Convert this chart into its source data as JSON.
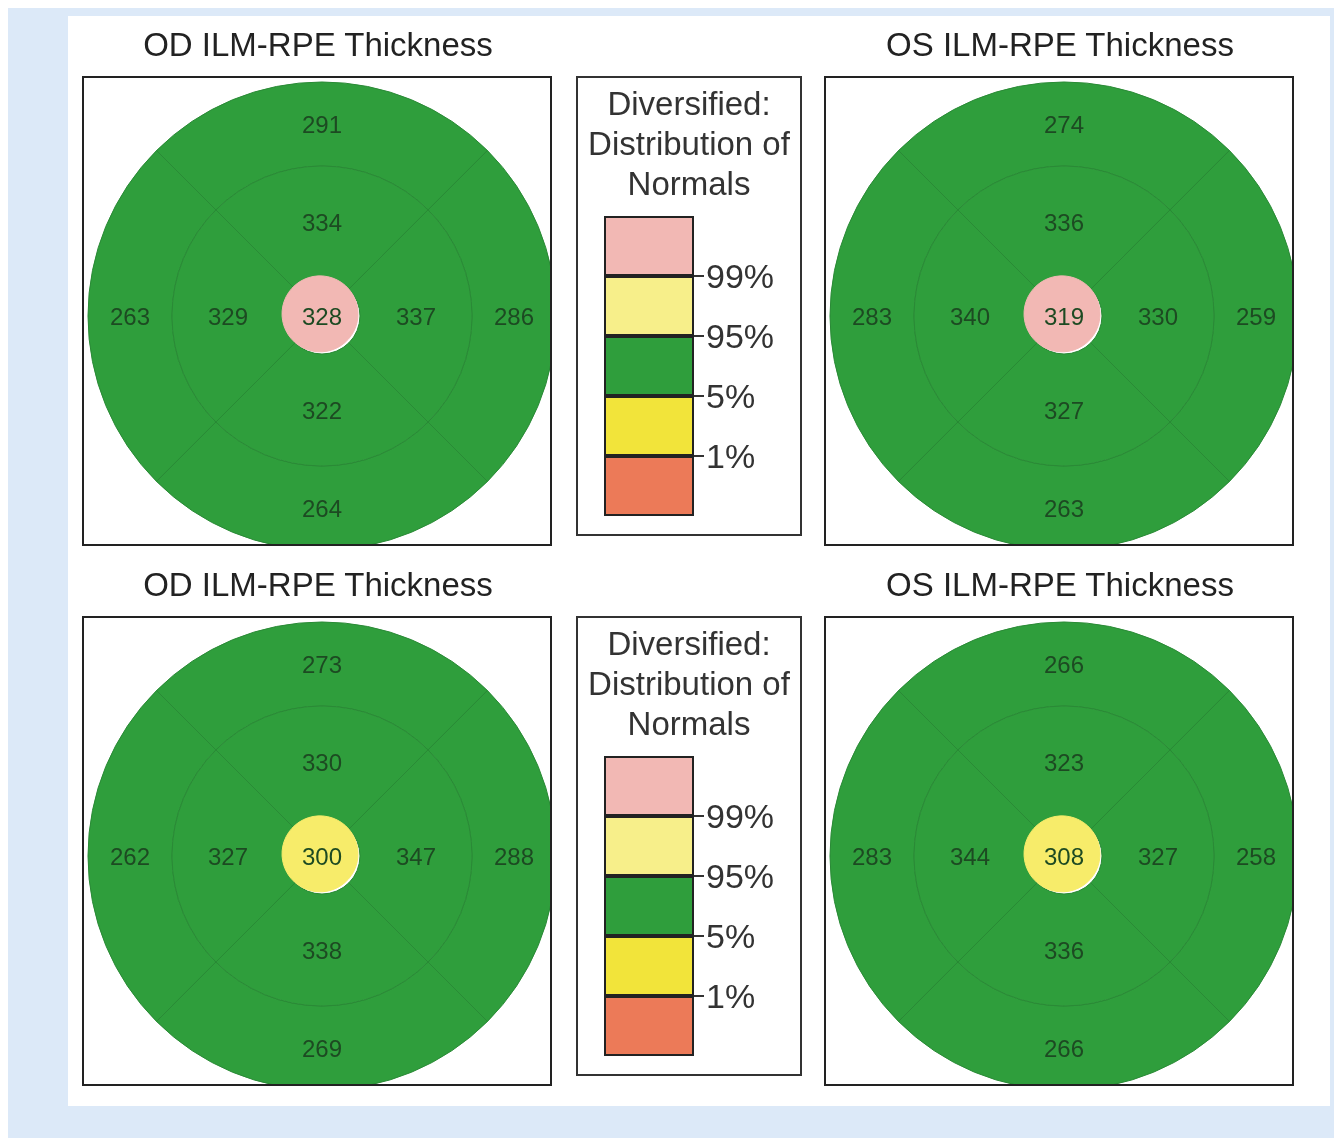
{
  "chart_data": [
    {
      "type": "other",
      "title": "OD ILM-RPE Thickness",
      "data_labels": true,
      "values": [
        291,
        334,
        263,
        329,
        328,
        337,
        286,
        322,
        264
      ],
      "colors": [
        "#2f9e3c",
        "#2f9e3c",
        "#2f9e3c",
        "#2f9e3c",
        "#f2b8b4",
        "#2f9e3c",
        "#2f9e3c",
        "#2f9e3c",
        "#2f9e3c"
      ]
    },
    {
      "type": "other",
      "title": "Diversified: Distribution of Normals",
      "annotations": [
        "99%",
        "95%",
        "5%",
        "1%"
      ]
    },
    {
      "type": "other",
      "title": "OS ILM-RPE Thickness",
      "data_labels": true,
      "values": [
        274,
        336,
        283,
        340,
        319,
        330,
        259,
        327,
        263
      ],
      "colors": [
        "#2f9e3c",
        "#2f9e3c",
        "#2f9e3c",
        "#2f9e3c",
        "#f2b8b4",
        "#2f9e3c",
        "#2f9e3c",
        "#2f9e3c",
        "#2f9e3c"
      ]
    },
    {
      "type": "other",
      "title": "OD ILM-RPE Thickness",
      "data_labels": true,
      "values": [
        273,
        330,
        262,
        327,
        300,
        347,
        288,
        338,
        269
      ],
      "colors": [
        "#2f9e3c",
        "#2f9e3c",
        "#2f9e3c",
        "#2f9e3c",
        "#f7ec6a",
        "#2f9e3c",
        "#2f9e3c",
        "#2f9e3c",
        "#2f9e3c"
      ]
    },
    {
      "type": "other",
      "title": "Diversified: Distribution of Normals",
      "annotations": [
        "99%",
        "95%",
        "5%",
        "1%"
      ]
    },
    {
      "type": "other",
      "title": "OS ILM-RPE Thickness",
      "data_labels": true,
      "values": [
        266,
        323,
        283,
        344,
        308,
        327,
        258,
        336,
        266
      ],
      "colors": [
        "#2f9e3c",
        "#2f9e3c",
        "#2f9e3c",
        "#2f9e3c",
        "#f7ec6a",
        "#2f9e3c",
        "#2f9e3c",
        "#2f9e3c",
        "#2f9e3c"
      ]
    }
  ]
}
